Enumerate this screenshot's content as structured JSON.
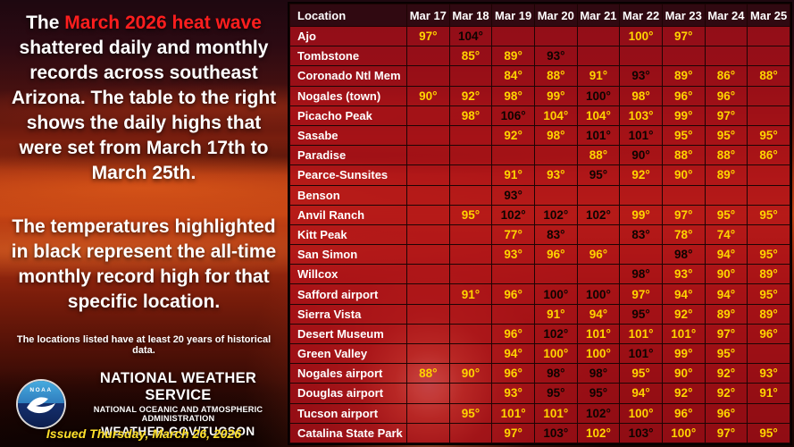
{
  "left_panel": {
    "intro": {
      "pre": "The ",
      "highlight": "March 2026 heat wave",
      "post": " shattered daily and monthly records across southeast Arizona. The table to the right shows the daily highs that were set from March 17th to March 25th."
    },
    "record_note": "The temperatures highlighted in black represent the all-time monthly record high for that specific location.",
    "data_note": "The locations listed have at least 20 years of historical data.",
    "agency": {
      "logo_text": "NOAA",
      "name": "NATIONAL WEATHER SERVICE",
      "parent": "NATIONAL OCEANIC AND ATMOSPHERIC ADMINISTRATION",
      "site": "WEATHER.GOV/TUCSON"
    },
    "issued": "Issued Thursday, March 26,  2026"
  },
  "colors": {
    "highlight_red": "#ff1e1e",
    "temp_yellow": "#ffd400",
    "record_black": "#0d0400",
    "cell_red": "#b5121f",
    "header_maroon": "#320a11",
    "issued_yellow": "#ffe12b"
  },
  "chart_data": {
    "type": "table",
    "columns": [
      "Location",
      "Mar 17",
      "Mar 18",
      "Mar 19",
      "Mar 20",
      "Mar 21",
      "Mar 22",
      "Mar 23",
      "Mar 24",
      "Mar 25"
    ],
    "record_note": "black value = all-time monthly record high",
    "rows": [
      {
        "location": "Ajo",
        "temps": [
          "97°",
          "104°",
          "",
          "",
          "",
          "100°",
          "97°",
          "",
          ""
        ],
        "record": [
          0,
          1,
          0,
          0,
          0,
          0,
          0,
          0,
          0
        ]
      },
      {
        "location": "Tombstone",
        "temps": [
          "",
          "85°",
          "89°",
          "93°",
          "",
          "",
          "",
          "",
          ""
        ],
        "record": [
          0,
          0,
          0,
          1,
          0,
          0,
          0,
          0,
          0
        ]
      },
      {
        "location": "Coronado Ntl Mem",
        "temps": [
          "",
          "",
          "84°",
          "88°",
          "91°",
          "93°",
          "89°",
          "86°",
          "88°"
        ],
        "record": [
          0,
          0,
          0,
          0,
          0,
          1,
          0,
          0,
          0
        ]
      },
      {
        "location": "Nogales (town)",
        "temps": [
          "90°",
          "92°",
          "98°",
          "99°",
          "100°",
          "98°",
          "96°",
          "96°",
          ""
        ],
        "record": [
          0,
          0,
          0,
          0,
          1,
          0,
          0,
          0,
          0
        ]
      },
      {
        "location": "Picacho Peak",
        "temps": [
          "",
          "98°",
          "106°",
          "104°",
          "104°",
          "103°",
          "99°",
          "97°",
          ""
        ],
        "record": [
          0,
          0,
          1,
          0,
          0,
          0,
          0,
          0,
          0
        ]
      },
      {
        "location": "Sasabe",
        "temps": [
          "",
          "",
          "92°",
          "98°",
          "101°",
          "101°",
          "95°",
          "95°",
          "95°"
        ],
        "record": [
          0,
          0,
          0,
          0,
          1,
          1,
          0,
          0,
          0
        ]
      },
      {
        "location": "Paradise",
        "temps": [
          "",
          "",
          "",
          "",
          "88°",
          "90°",
          "88°",
          "88°",
          "86°"
        ],
        "record": [
          0,
          0,
          0,
          0,
          0,
          1,
          0,
          0,
          0
        ]
      },
      {
        "location": "Pearce-Sunsites",
        "temps": [
          "",
          "",
          "91°",
          "93°",
          "95°",
          "92°",
          "90°",
          "89°",
          ""
        ],
        "record": [
          0,
          0,
          0,
          0,
          1,
          0,
          0,
          0,
          0
        ]
      },
      {
        "location": "Benson",
        "temps": [
          "",
          "",
          "93°",
          "",
          "",
          "",
          "",
          "",
          ""
        ],
        "record": [
          0,
          0,
          1,
          0,
          0,
          0,
          0,
          0,
          0
        ]
      },
      {
        "location": "Anvil Ranch",
        "temps": [
          "",
          "95°",
          "102°",
          "102°",
          "102°",
          "99°",
          "97°",
          "95°",
          "95°"
        ],
        "record": [
          0,
          0,
          1,
          1,
          1,
          0,
          0,
          0,
          0
        ]
      },
      {
        "location": "Kitt Peak",
        "temps": [
          "",
          "",
          "77°",
          "83°",
          "",
          "83°",
          "78°",
          "74°",
          ""
        ],
        "record": [
          0,
          0,
          0,
          1,
          0,
          1,
          0,
          0,
          0
        ]
      },
      {
        "location": "San Simon",
        "temps": [
          "",
          "",
          "93°",
          "96°",
          "96°",
          "",
          "98°",
          "94°",
          "95°"
        ],
        "record": [
          0,
          0,
          0,
          0,
          0,
          0,
          1,
          0,
          0
        ]
      },
      {
        "location": "Willcox",
        "temps": [
          "",
          "",
          "",
          "",
          "",
          "98°",
          "93°",
          "90°",
          "89°"
        ],
        "record": [
          0,
          0,
          0,
          0,
          0,
          1,
          0,
          0,
          0
        ]
      },
      {
        "location": "Safford airport",
        "temps": [
          "",
          "91°",
          "96°",
          "100°",
          "100°",
          "97°",
          "94°",
          "94°",
          "95°"
        ],
        "record": [
          0,
          0,
          0,
          1,
          1,
          0,
          0,
          0,
          0
        ]
      },
      {
        "location": "Sierra Vista",
        "temps": [
          "",
          "",
          "",
          "91°",
          "94°",
          "95°",
          "92°",
          "89°",
          "89°"
        ],
        "record": [
          0,
          0,
          0,
          0,
          0,
          1,
          0,
          0,
          0
        ]
      },
      {
        "location": "Desert Museum",
        "temps": [
          "",
          "",
          "96°",
          "102°",
          "101°",
          "101°",
          "101°",
          "97°",
          "96°"
        ],
        "record": [
          0,
          0,
          0,
          1,
          0,
          0,
          0,
          0,
          0
        ]
      },
      {
        "location": "Green Valley",
        "temps": [
          "",
          "",
          "94°",
          "100°",
          "100°",
          "101°",
          "99°",
          "95°",
          ""
        ],
        "record": [
          0,
          0,
          0,
          0,
          0,
          1,
          0,
          0,
          0
        ]
      },
      {
        "location": "Nogales airport",
        "temps": [
          "88°",
          "90°",
          "96°",
          "98°",
          "98°",
          "95°",
          "90°",
          "92°",
          "93°"
        ],
        "record": [
          0,
          0,
          0,
          1,
          1,
          0,
          0,
          0,
          0
        ]
      },
      {
        "location": "Douglas airport",
        "temps": [
          "",
          "",
          "93°",
          "95°",
          "95°",
          "94°",
          "92°",
          "92°",
          "91°"
        ],
        "record": [
          0,
          0,
          0,
          1,
          1,
          0,
          0,
          0,
          0
        ]
      },
      {
        "location": "Tucson airport",
        "temps": [
          "",
          "95°",
          "101°",
          "101°",
          "102°",
          "100°",
          "96°",
          "96°",
          ""
        ],
        "record": [
          0,
          0,
          0,
          0,
          1,
          0,
          0,
          0,
          0
        ]
      },
      {
        "location": "Catalina State Park",
        "temps": [
          "",
          "",
          "97°",
          "103°",
          "102°",
          "103°",
          "100°",
          "97°",
          "95°"
        ],
        "record": [
          0,
          0,
          0,
          1,
          0,
          1,
          0,
          0,
          0
        ]
      }
    ]
  }
}
